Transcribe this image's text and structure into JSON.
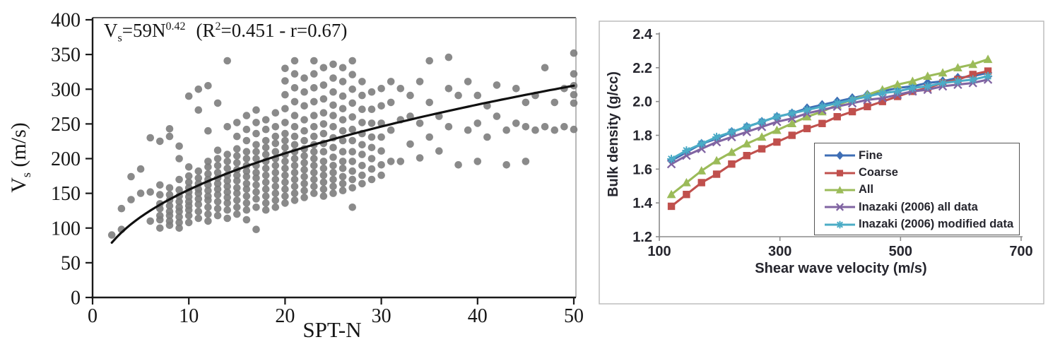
{
  "chart_data": [
    {
      "type": "scatter",
      "x_title": "SPT-N",
      "y_title_parts": {
        "main": "V",
        "sub": "s",
        "unit": " (m/s)"
      },
      "xlim": [
        0,
        50
      ],
      "ylim": [
        0,
        400
      ],
      "xticks": [
        0,
        10,
        20,
        30,
        40,
        50
      ],
      "yticks": [
        0,
        50,
        100,
        150,
        200,
        250,
        300,
        350,
        400
      ],
      "grid": false,
      "equation_text": "Vs=59N^0.42 (R^2=0.451 - r=0.67)",
      "equation": {
        "var": "V",
        "var_sub": "s",
        "mid": "=59N",
        "exp": "0.42",
        "r_open": "(R",
        "r_sup": "2",
        "r_rest": "=0.451 - r=0.67)"
      },
      "fit_curve": {
        "a": 59,
        "b": 0.42,
        "n_min": 2,
        "n_max": 50
      },
      "point_color": "#7d7d7d",
      "fit_color": "#101010",
      "points_by_n": {
        "2": [
          90
        ],
        "3": [
          98,
          128
        ],
        "4": [
          141,
          174
        ],
        "5": [
          150,
          185
        ],
        "6": [
          110,
          152,
          230
        ],
        "7": [
          100,
          112,
          118,
          128,
          135,
          148,
          162,
          225
        ],
        "8": [
          104,
          110,
          118,
          124,
          132,
          140,
          148,
          158,
          232,
          243
        ],
        "9": [
          100,
          108,
          116,
          124,
          130,
          138,
          146,
          155,
          170,
          200,
          218
        ],
        "10": [
          108,
          118,
          126,
          132,
          138,
          145,
          152,
          158,
          166,
          175,
          188,
          290
        ],
        "11": [
          114,
          124,
          134,
          142,
          150,
          156,
          164,
          172,
          182,
          270,
          300
        ],
        "12": [
          110,
          120,
          130,
          140,
          146,
          154,
          162,
          170,
          178,
          188,
          196,
          240,
          305
        ],
        "13": [
          118,
          128,
          138,
          148,
          156,
          164,
          172,
          180,
          190,
          200,
          212,
          280
        ],
        "14": [
          114,
          126,
          136,
          144,
          152,
          160,
          168,
          176,
          186,
          196,
          206,
          246,
          341
        ],
        "15": [
          120,
          130,
          140,
          150,
          158,
          168,
          176,
          184,
          194,
          204,
          214,
          232,
          252
        ],
        "16": [
          112,
          126,
          136,
          146,
          156,
          164,
          174,
          182,
          190,
          200,
          210,
          226,
          242,
          262
        ],
        "17": [
          98,
          130,
          142,
          152,
          162,
          172,
          180,
          190,
          200,
          210,
          220,
          236,
          252,
          270
        ],
        "18": [
          126,
          136,
          146,
          156,
          166,
          176,
          186,
          196,
          206,
          216,
          226,
          242,
          256
        ],
        "19": [
          130,
          140,
          150,
          160,
          170,
          180,
          190,
          200,
          210,
          222,
          232,
          246,
          266
        ],
        "20": [
          136,
          146,
          156,
          166,
          176,
          186,
          196,
          206,
          216,
          226,
          236,
          252,
          272,
          292,
          312,
          330
        ],
        "21": [
          140,
          150,
          160,
          170,
          180,
          190,
          200,
          210,
          220,
          232,
          246,
          262,
          282,
          302,
          322,
          341
        ],
        "22": [
          144,
          154,
          164,
          174,
          184,
          194,
          204,
          214,
          226,
          240,
          256,
          276,
          296,
          316
        ],
        "23": [
          150,
          160,
          170,
          180,
          190,
          200,
          210,
          220,
          232,
          246,
          262,
          282,
          302,
          322,
          341
        ],
        "24": [
          146,
          156,
          166,
          176,
          186,
          196,
          210,
          222,
          236,
          250,
          266,
          286,
          306,
          331
        ],
        "25": [
          150,
          160,
          170,
          180,
          190,
          202,
          216,
          230,
          246,
          262,
          277,
          296,
          316,
          336
        ],
        "26": [
          154,
          164,
          174,
          186,
          196,
          210,
          226,
          240,
          256,
          272,
          290,
          311,
          331
        ],
        "27": [
          130,
          158,
          170,
          182,
          196,
          210,
          226,
          242,
          260,
          280,
          300,
          321,
          341
        ],
        "28": [
          164,
          176,
          190,
          206,
          220,
          236,
          252,
          271,
          291,
          311
        ],
        "29": [
          170,
          185,
          200,
          216,
          231,
          251,
          271,
          296
        ],
        "30": [
          176,
          191,
          211,
          231,
          251,
          276,
          301
        ],
        "31": [
          196,
          241,
          281,
          311
        ],
        "32": [
          196,
          256,
          301
        ],
        "33": [
          221,
          261,
          291
        ],
        "34": [
          201,
          251,
          311
        ],
        "35": [
          231,
          281,
          341
        ],
        "36": [
          211,
          261
        ],
        "37": [
          246,
          301,
          346
        ],
        "38": [
          191,
          291
        ],
        "39": [
          241,
          311
        ],
        "40": [
          196,
          251,
          291
        ],
        "41": [
          231,
          276
        ],
        "42": [
          261,
          306
        ],
        "43": [
          191,
          241
        ],
        "44": [
          251,
          301
        ],
        "45": [
          196,
          246,
          281
        ],
        "46": [
          241,
          291
        ],
        "47": [
          246,
          331
        ],
        "48": [
          241,
          281
        ],
        "49": [
          246,
          301
        ],
        "50": [
          242,
          280,
          292,
          305,
          322,
          352
        ]
      }
    },
    {
      "type": "line",
      "x_title": "Shear wave velocity (m/s)",
      "y_title": "Bulk density (g/cc)",
      "xlim": [
        100,
        700
      ],
      "ylim": [
        1.2,
        2.4
      ],
      "xticks": [
        100,
        300,
        500,
        700
      ],
      "yticks": [
        1.2,
        1.4,
        1.6,
        1.8,
        2.0,
        2.2,
        2.4
      ],
      "grid": false,
      "legend_position": "bottom-right-inside",
      "x": [
        120,
        145,
        170,
        195,
        220,
        245,
        270,
        295,
        320,
        345,
        370,
        395,
        420,
        445,
        470,
        495,
        520,
        545,
        570,
        595,
        620,
        645
      ],
      "series": [
        {
          "name": "Fine",
          "color": "#3e6eb5",
          "marker": "diamond",
          "values": [
            1.65,
            1.7,
            1.75,
            1.78,
            1.82,
            1.85,
            1.88,
            1.91,
            1.93,
            1.96,
            1.98,
            2.0,
            2.02,
            2.04,
            2.06,
            2.08,
            2.09,
            2.11,
            2.12,
            2.14,
            2.15,
            2.17
          ]
        },
        {
          "name": "Coarse",
          "color": "#c0504d",
          "marker": "square",
          "values": [
            1.38,
            1.45,
            1.52,
            1.57,
            1.63,
            1.68,
            1.72,
            1.76,
            1.8,
            1.84,
            1.87,
            1.91,
            1.94,
            1.97,
            2.0,
            2.03,
            2.06,
            2.08,
            2.11,
            2.13,
            2.16,
            2.18
          ]
        },
        {
          "name": "All",
          "color": "#9bbb59",
          "marker": "triangle",
          "values": [
            1.45,
            1.52,
            1.59,
            1.65,
            1.7,
            1.75,
            1.79,
            1.83,
            1.87,
            1.91,
            1.94,
            1.98,
            2.01,
            2.04,
            2.07,
            2.1,
            2.12,
            2.15,
            2.17,
            2.2,
            2.22,
            2.25
          ]
        },
        {
          "name": "Inazaki (2006) all data",
          "color": "#8064a2",
          "marker": "x",
          "values": [
            1.63,
            1.68,
            1.72,
            1.76,
            1.79,
            1.82,
            1.85,
            1.88,
            1.9,
            1.93,
            1.95,
            1.97,
            1.99,
            2.01,
            2.02,
            2.04,
            2.06,
            2.07,
            2.09,
            2.1,
            2.11,
            2.13
          ]
        },
        {
          "name": "Inazaki (2006) modified data",
          "color": "#4bacc6",
          "marker": "star",
          "values": [
            1.66,
            1.71,
            1.75,
            1.79,
            1.82,
            1.85,
            1.88,
            1.91,
            1.93,
            1.95,
            1.97,
            1.99,
            2.01,
            2.03,
            2.05,
            2.06,
            2.08,
            2.09,
            2.11,
            2.12,
            2.13,
            2.15
          ]
        }
      ]
    }
  ]
}
